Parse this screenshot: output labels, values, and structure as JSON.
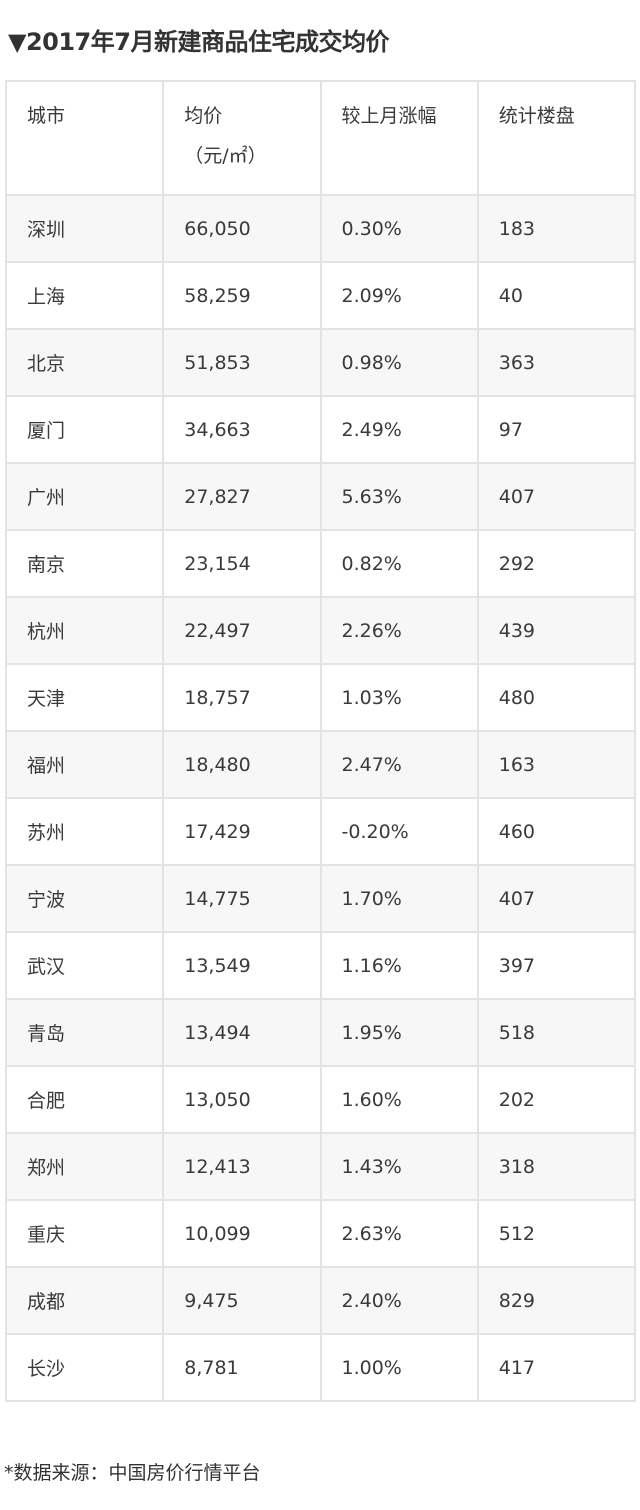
{
  "title": "▼2017年7月新建商品住宅成交均价",
  "table": {
    "headers": {
      "city": "城市",
      "price": "均价",
      "price_unit": "（元/㎡）",
      "change": "较上月涨幅",
      "projects": "统计楼盘"
    },
    "rows": [
      {
        "city": "深圳",
        "price": "66,050",
        "change": "0.30%",
        "projects": "183"
      },
      {
        "city": "上海",
        "price": "58,259",
        "change": "2.09%",
        "projects": "40"
      },
      {
        "city": "北京",
        "price": "51,853",
        "change": "0.98%",
        "projects": "363"
      },
      {
        "city": "厦门",
        "price": "34,663",
        "change": "2.49%",
        "projects": "97"
      },
      {
        "city": "广州",
        "price": "27,827",
        "change": "5.63%",
        "projects": "407"
      },
      {
        "city": "南京",
        "price": "23,154",
        "change": "0.82%",
        "projects": "292"
      },
      {
        "city": "杭州",
        "price": "22,497",
        "change": "2.26%",
        "projects": "439"
      },
      {
        "city": "天津",
        "price": "18,757",
        "change": "1.03%",
        "projects": "480"
      },
      {
        "city": "福州",
        "price": "18,480",
        "change": "2.47%",
        "projects": "163"
      },
      {
        "city": "苏州",
        "price": "17,429",
        "change": "-0.20%",
        "projects": "460"
      },
      {
        "city": "宁波",
        "price": "14,775",
        "change": "1.70%",
        "projects": "407"
      },
      {
        "city": "武汉",
        "price": "13,549",
        "change": "1.16%",
        "projects": "397"
      },
      {
        "city": "青岛",
        "price": "13,494",
        "change": "1.95%",
        "projects": "518"
      },
      {
        "city": "合肥",
        "price": "13,050",
        "change": "1.60%",
        "projects": "202"
      },
      {
        "city": "郑州",
        "price": "12,413",
        "change": "1.43%",
        "projects": "318"
      },
      {
        "city": "重庆",
        "price": "10,099",
        "change": "2.63%",
        "projects": "512"
      },
      {
        "city": "成都",
        "price": "9,475",
        "change": "2.40%",
        "projects": "829"
      },
      {
        "city": "长沙",
        "price": "8,781",
        "change": "1.00%",
        "projects": "417"
      }
    ]
  },
  "footnote": "*数据来源：中国房价行情平台"
}
